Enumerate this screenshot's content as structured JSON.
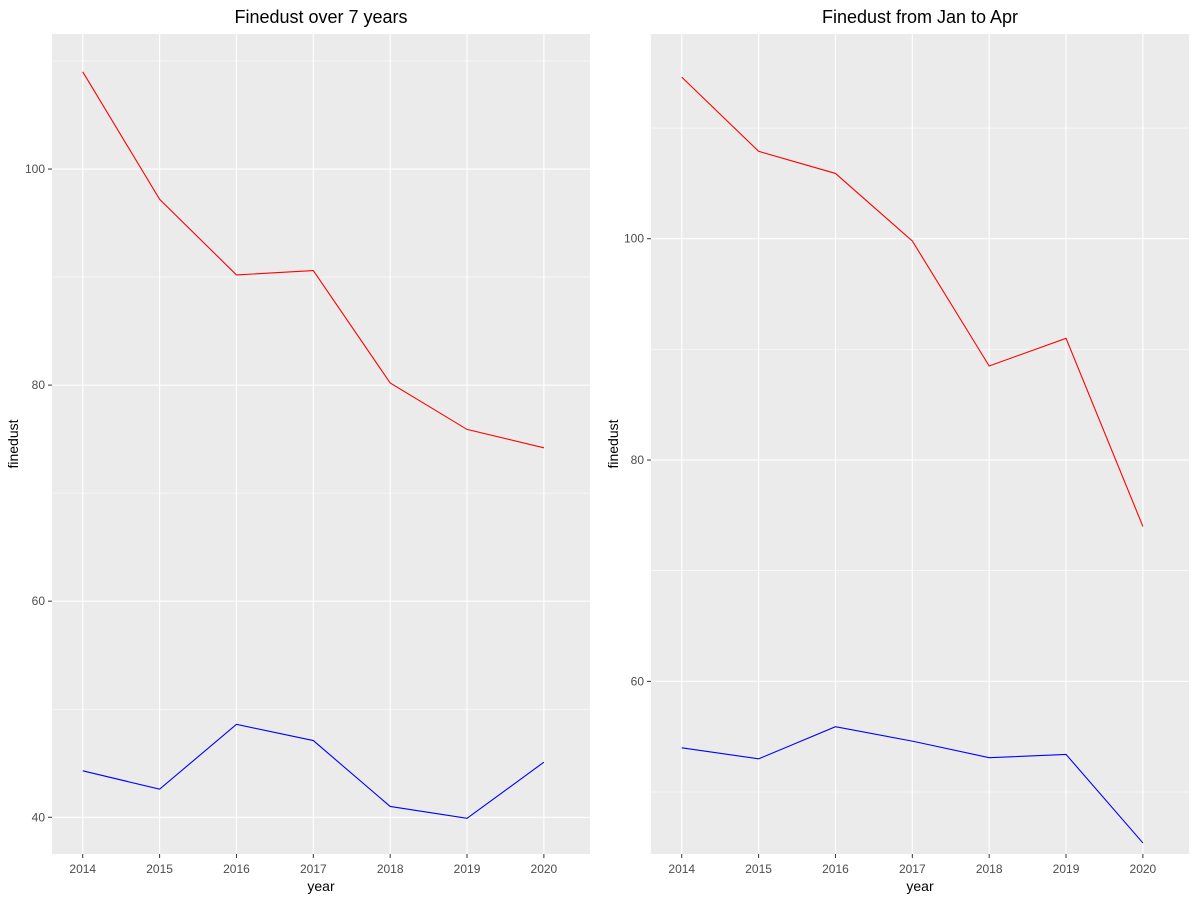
{
  "chart_data": [
    {
      "type": "line",
      "title": "Finedust over 7 years",
      "xlabel": "year",
      "ylabel": "finedust",
      "x": [
        2014,
        2015,
        2016,
        2017,
        2018,
        2019,
        2020
      ],
      "xlim": [
        2013.6,
        2020.6
      ],
      "ylim": [
        36.6,
        112.5
      ],
      "yticks": [
        40,
        60,
        80,
        100
      ],
      "grid": true,
      "series": [
        {
          "color": "#ff0000",
          "values": [
            109.0,
            97.2,
            90.2,
            90.6,
            80.2,
            75.9,
            74.2
          ]
        },
        {
          "color": "#0000ff",
          "values": [
            44.3,
            42.6,
            48.6,
            47.1,
            41.0,
            39.9,
            45.1
          ]
        }
      ]
    },
    {
      "type": "line",
      "title": "Finedust from Jan to Apr",
      "xlabel": "year",
      "ylabel": "finedust",
      "x": [
        2014,
        2015,
        2016,
        2017,
        2018,
        2019,
        2020
      ],
      "xlim": [
        2013.6,
        2020.6
      ],
      "ylim": [
        44.4,
        118.5
      ],
      "yticks": [
        60,
        80,
        100
      ],
      "grid": true,
      "series": [
        {
          "color": "#ff0000",
          "values": [
            114.6,
            107.9,
            105.9,
            99.8,
            88.5,
            91.0,
            74.0
          ]
        },
        {
          "color": "#0000ff",
          "values": [
            54.0,
            53.0,
            55.9,
            54.6,
            53.1,
            53.4,
            45.4
          ]
        }
      ]
    }
  ]
}
